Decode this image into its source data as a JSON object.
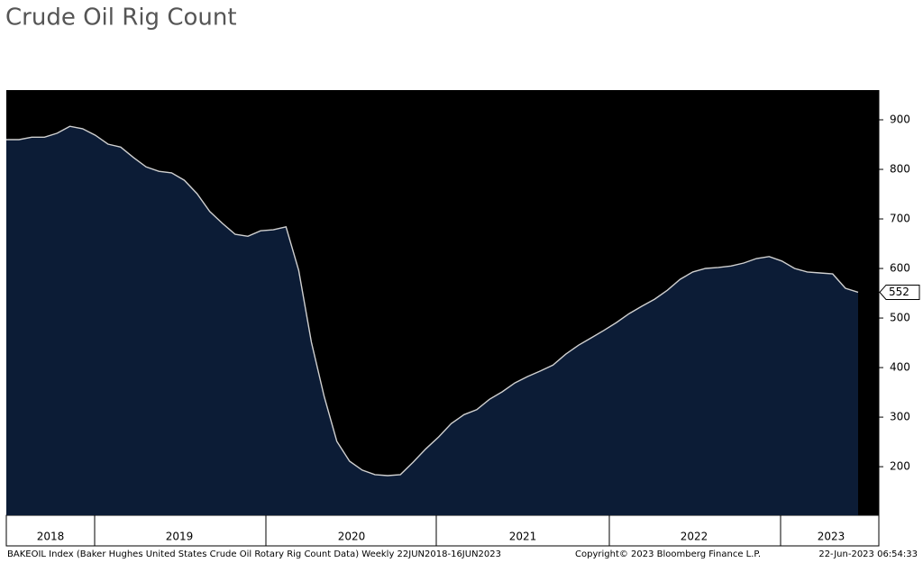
{
  "chart_data": {
    "type": "area",
    "title": "Crude Oil Rig Count",
    "values": [
      860,
      860,
      865,
      865,
      873,
      887,
      882,
      869,
      851,
      845,
      824,
      805,
      796,
      793,
      778,
      751,
      715,
      691,
      669,
      665,
      676,
      678,
      684,
      596,
      451,
      342,
      251,
      211,
      193,
      184,
      182,
      184,
      209,
      236,
      260,
      287,
      305,
      315,
      336,
      351,
      369,
      382,
      393,
      405,
      427,
      445,
      460,
      475,
      491,
      509,
      524,
      538,
      556,
      578,
      593,
      600,
      602,
      605,
      611,
      620,
      624,
      615,
      600,
      593,
      591,
      589,
      560,
      552
    ],
    "last_value_label": "552",
    "x_labels": [
      "2018",
      "2019",
      "2020",
      "2021",
      "2022",
      "2023"
    ],
    "ylim": [
      102,
      960
    ],
    "yticks": [
      200,
      300,
      400,
      500,
      600,
      700,
      800,
      900
    ],
    "color": "#0c1c36",
    "line_color": "#d0d0d0",
    "footer": [
      "BAKEOIL Index (Baker Hughes United States Crude Oil Rotary Rig Count Data)  Weekly 22JUN2018-16JUN2023",
      "Copyright© 2023 Bloomberg Finance L.P.",
      "22-Jun-2023 06:54:33"
    ]
  }
}
